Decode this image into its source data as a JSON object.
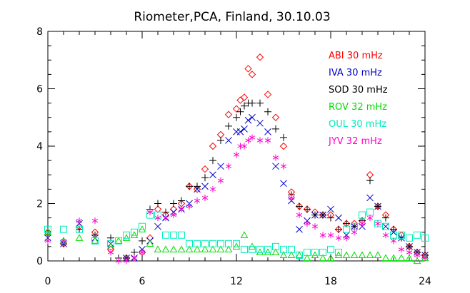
{
  "chart_data": {
    "type": "scatter",
    "title": "Riometer,PCA, Finland, 30.10.03",
    "xlabel": "",
    "ylabel": "",
    "xlim": [
      0,
      24
    ],
    "ylim": [
      0,
      8
    ],
    "xticks": [
      0,
      6,
      12,
      18,
      24
    ],
    "yticks": [
      0,
      2,
      4,
      6,
      8
    ],
    "legend_position": "top-right",
    "series": [
      {
        "name": "ABI 30 mHz",
        "color": "#ff0000",
        "marker": "diamond",
        "points": [
          [
            0,
            1.0
          ],
          [
            1,
            0.6
          ],
          [
            2,
            1.2
          ],
          [
            3,
            1.0
          ],
          [
            4,
            0.4
          ],
          [
            5,
            0.1
          ],
          [
            6,
            0.3
          ],
          [
            6.5,
            0.8
          ],
          [
            7,
            1.8
          ],
          [
            7.5,
            1.6
          ],
          [
            8,
            1.8
          ],
          [
            8.5,
            2.0
          ],
          [
            9,
            2.6
          ],
          [
            9.5,
            2.5
          ],
          [
            10,
            3.2
          ],
          [
            10.5,
            4.0
          ],
          [
            11,
            4.4
          ],
          [
            11.5,
            5.1
          ],
          [
            12,
            5.3
          ],
          [
            12.25,
            5.6
          ],
          [
            12.5,
            5.7
          ],
          [
            12.75,
            6.7
          ],
          [
            13,
            6.5
          ],
          [
            13.5,
            7.1
          ],
          [
            14,
            5.8
          ],
          [
            14.5,
            5.0
          ],
          [
            15,
            4.0
          ],
          [
            15.5,
            2.4
          ],
          [
            16,
            1.9
          ],
          [
            16.5,
            1.8
          ],
          [
            17,
            1.7
          ],
          [
            17.5,
            1.6
          ],
          [
            18,
            1.6
          ],
          [
            18.5,
            1.1
          ],
          [
            19,
            1.3
          ],
          [
            19.5,
            1.3
          ],
          [
            20,
            1.4
          ],
          [
            20.5,
            3.0
          ],
          [
            21,
            1.9
          ],
          [
            21.5,
            1.6
          ],
          [
            22,
            1.1
          ],
          [
            22.5,
            0.9
          ],
          [
            23,
            0.5
          ],
          [
            23.5,
            0.3
          ],
          [
            24,
            0.2
          ]
        ]
      },
      {
        "name": "IVA 30 mHz",
        "color": "#0000cc",
        "marker": "x",
        "points": [
          [
            0,
            0.8
          ],
          [
            1,
            0.6
          ],
          [
            2,
            1.3
          ],
          [
            3,
            0.8
          ],
          [
            4,
            0.6
          ],
          [
            5,
            0.1
          ],
          [
            5.5,
            0.1
          ],
          [
            6,
            0.4
          ],
          [
            6.5,
            0.7
          ],
          [
            7,
            1.2
          ],
          [
            7.5,
            1.5
          ],
          [
            8,
            1.7
          ],
          [
            8.5,
            1.8
          ],
          [
            9,
            2.0
          ],
          [
            9.5,
            2.5
          ],
          [
            10,
            2.6
          ],
          [
            10.5,
            3.0
          ],
          [
            11,
            3.3
          ],
          [
            11.5,
            4.2
          ],
          [
            12,
            4.5
          ],
          [
            12.25,
            4.5
          ],
          [
            12.5,
            4.6
          ],
          [
            12.75,
            4.9
          ],
          [
            13,
            5.0
          ],
          [
            13.5,
            4.8
          ],
          [
            14,
            4.5
          ],
          [
            14.5,
            3.3
          ],
          [
            15,
            2.7
          ],
          [
            15.5,
            2.1
          ],
          [
            16,
            1.1
          ],
          [
            16.5,
            1.4
          ],
          [
            17,
            1.6
          ],
          [
            17.5,
            1.6
          ],
          [
            18,
            1.8
          ],
          [
            18.5,
            1.5
          ],
          [
            19,
            0.9
          ],
          [
            19.5,
            1.2
          ],
          [
            20,
            1.2
          ],
          [
            20.5,
            2.2
          ],
          [
            21,
            1.9
          ],
          [
            21.5,
            1.2
          ],
          [
            22,
            1.0
          ],
          [
            22.5,
            0.8
          ],
          [
            23,
            0.5
          ],
          [
            23.5,
            0.3
          ],
          [
            24,
            0.2
          ]
        ]
      },
      {
        "name": "SOD 30 mHz",
        "color": "#000000",
        "marker": "plus",
        "points": [
          [
            0,
            0.9
          ],
          [
            1,
            0.6
          ],
          [
            2,
            1.1
          ],
          [
            3,
            0.9
          ],
          [
            4,
            0.8
          ],
          [
            4.5,
            0.1
          ],
          [
            5,
            0.1
          ],
          [
            5.5,
            0.3
          ],
          [
            6,
            0.7
          ],
          [
            6.5,
            1.8
          ],
          [
            7,
            2.0
          ],
          [
            7.5,
            1.7
          ],
          [
            8,
            2.0
          ],
          [
            8.5,
            2.1
          ],
          [
            9,
            2.6
          ],
          [
            9.5,
            2.6
          ],
          [
            10,
            2.9
          ],
          [
            10.5,
            3.5
          ],
          [
            11,
            4.2
          ],
          [
            11.5,
            4.7
          ],
          [
            12,
            5.0
          ],
          [
            12.25,
            5.2
          ],
          [
            12.5,
            5.4
          ],
          [
            12.75,
            5.5
          ],
          [
            13,
            5.5
          ],
          [
            13.5,
            5.5
          ],
          [
            14,
            5.2
          ],
          [
            14.5,
            4.6
          ],
          [
            15,
            4.3
          ],
          [
            15.5,
            2.3
          ],
          [
            16,
            1.9
          ],
          [
            16.5,
            1.8
          ],
          [
            17,
            1.6
          ],
          [
            17.5,
            1.6
          ],
          [
            18,
            1.5
          ],
          [
            18.5,
            1.1
          ],
          [
            19,
            1.3
          ],
          [
            19.5,
            1.2
          ],
          [
            20,
            1.4
          ],
          [
            20.5,
            2.8
          ],
          [
            21,
            1.9
          ],
          [
            21.5,
            1.5
          ],
          [
            22,
            1.1
          ],
          [
            22.5,
            0.8
          ],
          [
            23,
            0.5
          ],
          [
            23.5,
            0.3
          ],
          [
            24,
            0.2
          ]
        ]
      },
      {
        "name": "ROV 32 mHz",
        "color": "#00dd00",
        "marker": "triangle",
        "points": [
          [
            0,
            1.0
          ],
          [
            1,
            0.7
          ],
          [
            2,
            0.8
          ],
          [
            3,
            0.7
          ],
          [
            4,
            0.5
          ],
          [
            4.5,
            0.7
          ],
          [
            5,
            0.8
          ],
          [
            5.5,
            0.9
          ],
          [
            6,
            1.1
          ],
          [
            6.5,
            0.6
          ],
          [
            7,
            0.4
          ],
          [
            7.5,
            0.4
          ],
          [
            8,
            0.4
          ],
          [
            8.5,
            0.4
          ],
          [
            9,
            0.4
          ],
          [
            9.5,
            0.4
          ],
          [
            10,
            0.4
          ],
          [
            10.5,
            0.4
          ],
          [
            11,
            0.4
          ],
          [
            11.5,
            0.4
          ],
          [
            12,
            0.5
          ],
          [
            12.5,
            0.9
          ],
          [
            13,
            0.5
          ],
          [
            13.5,
            0.3
          ],
          [
            14,
            0.3
          ],
          [
            14.5,
            0.3
          ],
          [
            15,
            0.2
          ],
          [
            15.5,
            0.2
          ],
          [
            16,
            0.2
          ],
          [
            16.5,
            0.1
          ],
          [
            17,
            0.2
          ],
          [
            17.5,
            0.1
          ],
          [
            18,
            0.1
          ],
          [
            18.5,
            0.2
          ],
          [
            19,
            0.2
          ],
          [
            19.5,
            0.2
          ],
          [
            20,
            0.2
          ],
          [
            20.5,
            0.2
          ],
          [
            21,
            0.2
          ],
          [
            21.5,
            0.1
          ],
          [
            22,
            0.1
          ],
          [
            22.5,
            0.1
          ],
          [
            23,
            0.1
          ],
          [
            23.5,
            0.0
          ],
          [
            24,
            0.1
          ]
        ]
      },
      {
        "name": "OUL 30 mHz",
        "color": "#00eebb",
        "marker": "square",
        "points": [
          [
            0,
            1.1
          ],
          [
            1,
            1.1
          ],
          [
            2,
            1.1
          ],
          [
            3,
            0.7
          ],
          [
            4,
            0.6
          ],
          [
            4.5,
            0.7
          ],
          [
            5,
            0.9
          ],
          [
            5.5,
            1.0
          ],
          [
            6,
            1.2
          ],
          [
            6.5,
            1.6
          ],
          [
            7,
            1.6
          ],
          [
            7.5,
            0.9
          ],
          [
            8,
            0.9
          ],
          [
            8.5,
            0.9
          ],
          [
            9,
            0.6
          ],
          [
            9.5,
            0.6
          ],
          [
            10,
            0.6
          ],
          [
            10.5,
            0.6
          ],
          [
            11,
            0.6
          ],
          [
            11.5,
            0.6
          ],
          [
            12,
            0.6
          ],
          [
            12.5,
            0.4
          ],
          [
            13,
            0.4
          ],
          [
            13.5,
            0.4
          ],
          [
            14,
            0.4
          ],
          [
            14.5,
            0.5
          ],
          [
            15,
            0.4
          ],
          [
            15.5,
            0.4
          ],
          [
            16,
            0.2
          ],
          [
            16.5,
            0.3
          ],
          [
            17,
            0.3
          ],
          [
            17.5,
            0.3
          ],
          [
            18,
            0.4
          ],
          [
            18.5,
            0.3
          ],
          [
            19,
            1.1
          ],
          [
            19.5,
            1.2
          ],
          [
            20,
            1.6
          ],
          [
            20.5,
            1.7
          ],
          [
            21,
            1.3
          ],
          [
            21.5,
            1.2
          ],
          [
            22,
            0.9
          ],
          [
            22.5,
            0.9
          ],
          [
            23,
            0.8
          ],
          [
            23.5,
            0.9
          ],
          [
            24,
            0.8
          ]
        ]
      },
      {
        "name": "JYV 32 mHz",
        "color": "#ff00cc",
        "marker": "asterisk",
        "points": [
          [
            0,
            0.7
          ],
          [
            1,
            0.7
          ],
          [
            2,
            1.4
          ],
          [
            3,
            1.4
          ],
          [
            4,
            0.3
          ],
          [
            4.5,
            0.0
          ],
          [
            5,
            0.0
          ],
          [
            5.5,
            0.1
          ],
          [
            6,
            0.3
          ],
          [
            6.5,
            1.7
          ],
          [
            7,
            1.5
          ],
          [
            7.5,
            1.5
          ],
          [
            8,
            1.6
          ],
          [
            8.5,
            1.8
          ],
          [
            9,
            1.9
          ],
          [
            9.5,
            2.1
          ],
          [
            10,
            2.2
          ],
          [
            10.5,
            2.5
          ],
          [
            11,
            2.8
          ],
          [
            11.5,
            3.3
          ],
          [
            12,
            3.7
          ],
          [
            12.25,
            4.0
          ],
          [
            12.5,
            4.0
          ],
          [
            12.75,
            4.2
          ],
          [
            13,
            4.3
          ],
          [
            13.5,
            4.2
          ],
          [
            14,
            4.2
          ],
          [
            14.5,
            3.6
          ],
          [
            15,
            3.3
          ],
          [
            15.5,
            2.2
          ],
          [
            16,
            1.6
          ],
          [
            16.5,
            1.3
          ],
          [
            17,
            1.2
          ],
          [
            17.5,
            0.9
          ],
          [
            18,
            0.9
          ],
          [
            18.5,
            0.8
          ],
          [
            19,
            0.8
          ],
          [
            19.5,
            1.0
          ],
          [
            20,
            1.3
          ],
          [
            20.5,
            1.5
          ],
          [
            21,
            1.3
          ],
          [
            21.5,
            0.9
          ],
          [
            22,
            0.7
          ],
          [
            22.5,
            0.4
          ],
          [
            23,
            0.3
          ],
          [
            23.5,
            0.2
          ],
          [
            24,
            0.1
          ]
        ]
      }
    ]
  }
}
